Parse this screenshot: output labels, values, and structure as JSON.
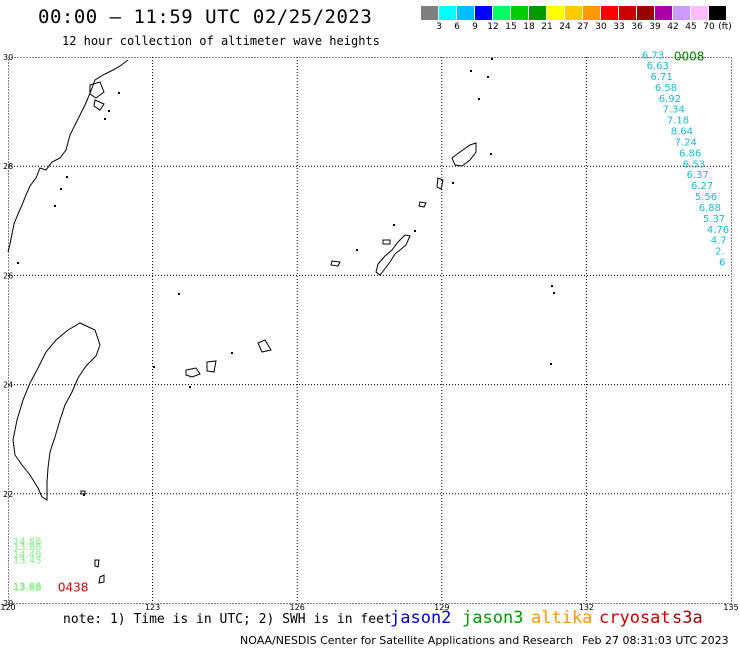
{
  "header": {
    "title": "00:00 – 11:59 UTC 02/25/2023",
    "subtitle": "12 hour collection of altimeter wave heights"
  },
  "legend": {
    "unit_label": "(ft)",
    "items": [
      {
        "label": "",
        "color": "#7f7f7f"
      },
      {
        "label": "3",
        "color": "#00ffff"
      },
      {
        "label": "6",
        "color": "#00bfff"
      },
      {
        "label": "9",
        "color": "#0000ff"
      },
      {
        "label": "12",
        "color": "#00ff66"
      },
      {
        "label": "15",
        "color": "#00cc00"
      },
      {
        "label": "18",
        "color": "#009900"
      },
      {
        "label": "21",
        "color": "#ffff00"
      },
      {
        "label": "24",
        "color": "#ffcc00"
      },
      {
        "label": "27",
        "color": "#ff9900"
      },
      {
        "label": "30",
        "color": "#ff0000"
      },
      {
        "label": "33",
        "color": "#cc0000"
      },
      {
        "label": "36",
        "color": "#990000"
      },
      {
        "label": "39",
        "color": "#aa00aa"
      },
      {
        "label": "42",
        "color": "#cc99ff"
      },
      {
        "label": "45",
        "color": "#ffbbff"
      },
      {
        "label": "70",
        "color": "#000000"
      }
    ]
  },
  "map": {
    "lon_ticks": [
      "120",
      "123",
      "126",
      "129",
      "132",
      "135"
    ],
    "lat_ticks": [
      "20",
      "22",
      "24",
      "26",
      "28",
      "30"
    ],
    "lon_range": [
      120,
      135
    ],
    "lat_range": [
      20,
      30
    ]
  },
  "tracks": [
    {
      "name": "altika-track",
      "color": "#1ab8d8",
      "time_label": "0008",
      "time_color": "#008800",
      "points": [
        {
          "lon": 133.15,
          "lat": 29.97,
          "value": "6.73"
        },
        {
          "lon": 133.25,
          "lat": 29.78,
          "value": "6.63"
        },
        {
          "lon": 133.33,
          "lat": 29.58,
          "value": "6.71"
        },
        {
          "lon": 133.42,
          "lat": 29.38,
          "value": "6.58"
        },
        {
          "lon": 133.5,
          "lat": 29.18,
          "value": "6.92"
        },
        {
          "lon": 133.58,
          "lat": 28.98,
          "value": "7.34"
        },
        {
          "lon": 133.67,
          "lat": 28.78,
          "value": "7.18"
        },
        {
          "lon": 133.75,
          "lat": 28.58,
          "value": "8.64"
        },
        {
          "lon": 133.83,
          "lat": 28.38,
          "value": "7.24"
        },
        {
          "lon": 133.92,
          "lat": 28.18,
          "value": "6.86"
        },
        {
          "lon": 134.0,
          "lat": 27.98,
          "value": "6.53"
        },
        {
          "lon": 134.08,
          "lat": 27.78,
          "value": "6.37"
        },
        {
          "lon": 134.17,
          "lat": 27.58,
          "value": "6.27"
        },
        {
          "lon": 134.25,
          "lat": 27.38,
          "value": "5.56"
        },
        {
          "lon": 134.33,
          "lat": 27.18,
          "value": "6.88"
        },
        {
          "lon": 134.42,
          "lat": 26.98,
          "value": "5.37"
        },
        {
          "lon": 134.5,
          "lat": 26.78,
          "value": "4.76"
        },
        {
          "lon": 134.58,
          "lat": 26.58,
          "value": "4.7"
        },
        {
          "lon": 134.67,
          "lat": 26.38,
          "value": "2."
        },
        {
          "lon": 134.75,
          "lat": 26.18,
          "value": "6"
        }
      ]
    },
    {
      "name": "jason3-track",
      "color": "#88ee88",
      "time_label": "0438",
      "time_color": "#dd0000",
      "points": [
        {
          "lon": 120.1,
          "lat": 21.07,
          "value": "14.88"
        },
        {
          "lon": 120.1,
          "lat": 20.97,
          "value": "13.88"
        },
        {
          "lon": 120.1,
          "lat": 20.82,
          "value": "14.49"
        },
        {
          "lon": 120.1,
          "lat": 20.72,
          "value": "13.43"
        },
        {
          "lon": 120.1,
          "lat": 20.25,
          "value": "13.66"
        },
        {
          "lon": 120.1,
          "lat": 20.23,
          "value": "13.88"
        }
      ]
    }
  ],
  "footer": {
    "note": "note: 1) Time is in UTC; 2) SWH is in feet",
    "satellites": [
      {
        "label": "jason2",
        "color": "#0000cc"
      },
      {
        "label": "jason3",
        "color": "#009900"
      },
      {
        "label": "altika",
        "color": "#ff9900"
      },
      {
        "label": "cryosat",
        "color": "#cc0000"
      },
      {
        "label": "s3a",
        "color": "#990000"
      }
    ],
    "credit": "NOAA/NESDIS Center for Satellite Applications and Research",
    "timestamp": "Feb 27 08:31:03 UTC 2023"
  }
}
